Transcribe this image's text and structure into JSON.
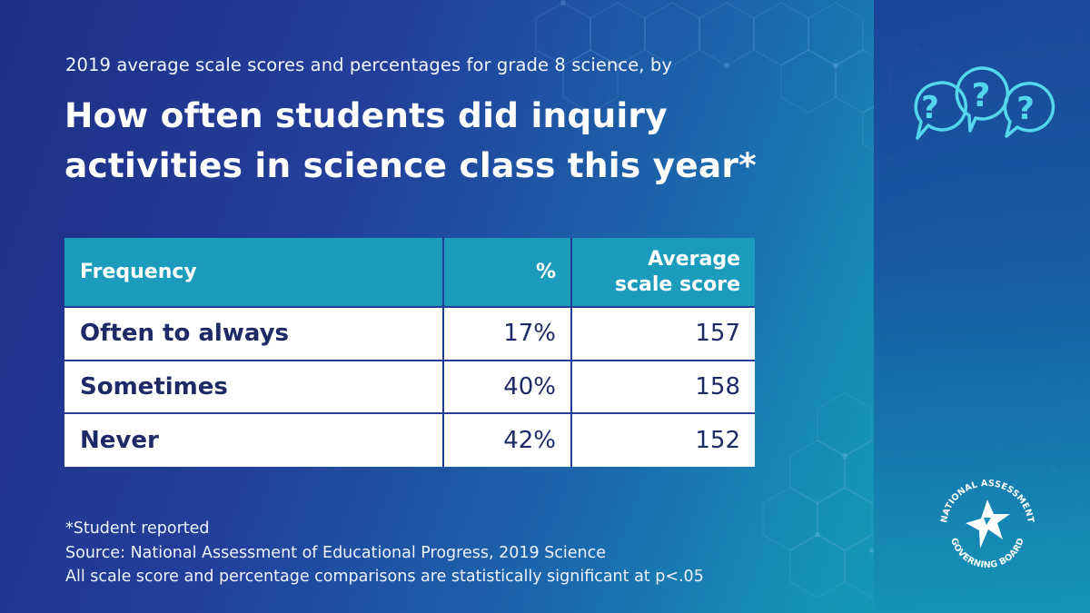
{
  "header": {
    "subtitle": "2019 average scale scores and percentages for grade 8 science, by",
    "title_line1": "How often students did inquiry",
    "title_line2": "activities in science class this year*"
  },
  "chart_data": {
    "type": "table",
    "columns": [
      "Frequency",
      "%",
      "Average scale score"
    ],
    "rows": [
      {
        "frequency": "Often to always",
        "percent": "17%",
        "score": "157"
      },
      {
        "frequency": "Sometimes",
        "percent": "40%",
        "score": "158"
      },
      {
        "frequency": "Never",
        "percent": "42%",
        "score": "152"
      }
    ]
  },
  "table": {
    "header": {
      "frequency": "Frequency",
      "percent": "%",
      "score_line1": "Average",
      "score_line2": "scale score"
    }
  },
  "footnotes": {
    "note": "*Student reported",
    "source": "Source: National Assessment of Educational Progress, 2019 Science",
    "significance": "All scale score and percentage comparisons are statistically significant at p<.05"
  },
  "logo": {
    "top_text": "NATIONAL ASSESSMENT",
    "bottom_text": "GOVERNING BOARD"
  },
  "icons": {
    "questions": "question-bubbles-icon",
    "logo": "star-logo-icon"
  },
  "colors": {
    "header_cell": "#1b9cbc",
    "cell_text": "#1d2a66",
    "icon_stroke": "#53d6ee"
  }
}
